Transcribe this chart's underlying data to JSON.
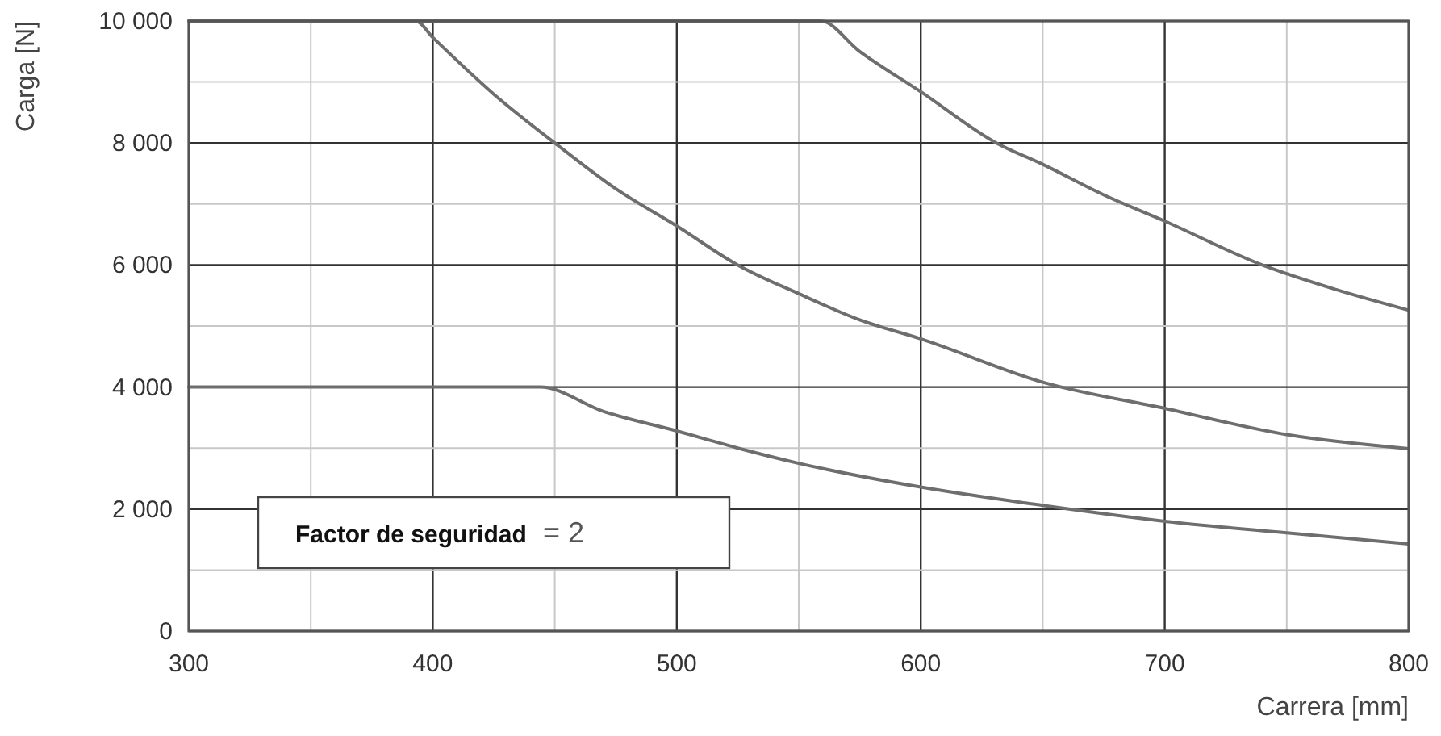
{
  "chart_data": {
    "type": "line",
    "xlabel": "Carrera [mm]",
    "ylabel": "Carga [N]",
    "annotations": [
      "Factor de seguridad = 2"
    ],
    "xlim": [
      300,
      800
    ],
    "ylim": [
      0,
      10000
    ],
    "xticks": [
      300,
      {
        "value": 350,
        "label": null
      },
      400,
      {
        "value": 450,
        "label": null
      },
      500,
      {
        "value": 550,
        "label": null
      },
      600,
      {
        "value": 650,
        "label": null
      },
      700,
      {
        "value": 750,
        "label": null
      },
      800
    ],
    "yticks": [
      0,
      {
        "value": 1000,
        "label": null
      },
      {
        "value": 2000,
        "label": "2 000"
      },
      {
        "value": 3000,
        "label": null
      },
      {
        "value": 4000,
        "label": "4 000"
      },
      {
        "value": 5000,
        "label": null
      },
      {
        "value": 6000,
        "label": "6 000"
      },
      {
        "value": 7000,
        "label": null
      },
      {
        "value": 8000,
        "label": "8 000"
      },
      {
        "value": 9000,
        "label": null
      },
      {
        "value": 10000,
        "label": "10 000"
      }
    ],
    "grid": true,
    "marker": "none",
    "line_style": "solid",
    "series": [
      {
        "color": "#6e6e6e",
        "x": [
          300,
          559,
          575,
          600,
          631,
          650,
          675,
          700,
          740,
          770,
          800
        ],
        "values": [
          10000,
          10000,
          9500,
          8840,
          8000,
          7650,
          7150,
          6720,
          6000,
          5600,
          5260
        ]
      },
      {
        "color": "#6e6e6e",
        "x": [
          300,
          393,
          400,
          425,
          450,
          475,
          500,
          525,
          550,
          575,
          600,
          650,
          700,
          750,
          800
        ],
        "values": [
          10000,
          10000,
          9730,
          8800,
          8000,
          7250,
          6640,
          6000,
          5530,
          5100,
          4790,
          4080,
          3650,
          3220,
          2990
        ]
      },
      {
        "color": "#6e6e6e",
        "x": [
          300,
          444,
          470,
          500,
          525,
          550,
          600,
          650,
          700,
          750,
          800
        ],
        "values": [
          4000,
          4000,
          3600,
          3280,
          3000,
          2750,
          2360,
          2060,
          1800,
          1610,
          1430
        ]
      }
    ]
  }
}
